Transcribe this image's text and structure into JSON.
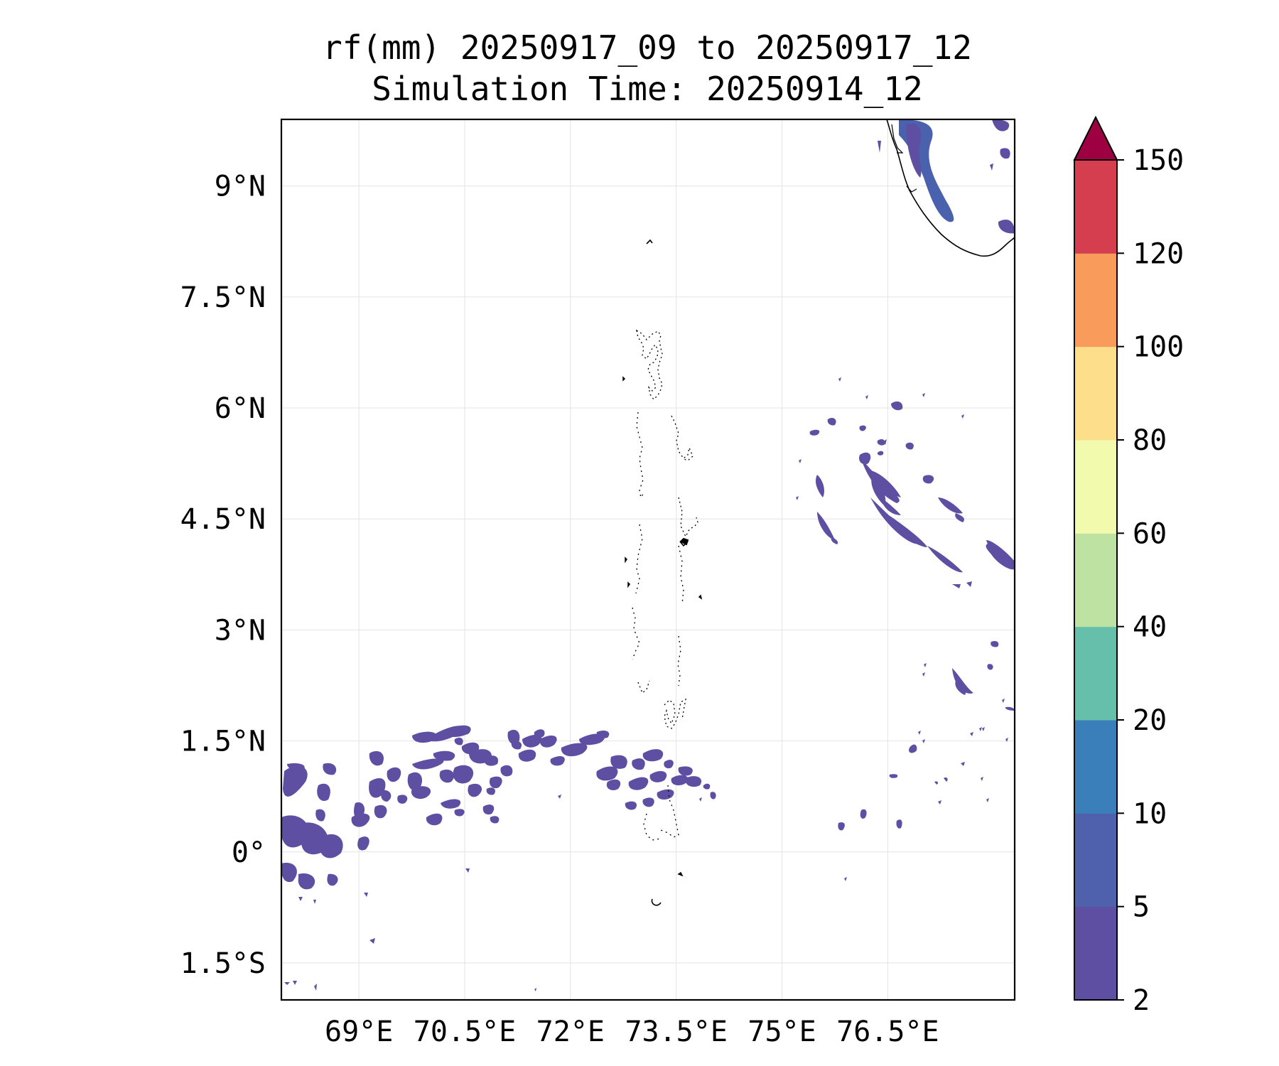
{
  "title": {
    "line1": "rf(mm) 20250917_09 to 20250917_12",
    "line2": "Simulation Time: 20250914_12"
  },
  "map": {
    "lon_range": [
      67.9,
      78.3
    ],
    "lat_range": [
      -2.0,
      9.9
    ],
    "lon_ticks": [
      {
        "value": 69.0,
        "label": "69°E"
      },
      {
        "value": 70.5,
        "label": "70.5°E"
      },
      {
        "value": 72.0,
        "label": "72°E"
      },
      {
        "value": 73.5,
        "label": "73.5°E"
      },
      {
        "value": 75.0,
        "label": "75°E"
      },
      {
        "value": 76.5,
        "label": "76.5°E"
      }
    ],
    "lat_ticks": [
      {
        "value": 9.0,
        "label": "9°N"
      },
      {
        "value": 7.5,
        "label": "7.5°N"
      },
      {
        "value": 6.0,
        "label": "6°N"
      },
      {
        "value": 4.5,
        "label": "4.5°N"
      },
      {
        "value": 3.0,
        "label": "3°N"
      },
      {
        "value": 1.5,
        "label": "1.5°N"
      },
      {
        "value": 0.0,
        "label": "0°"
      },
      {
        "value": -1.5,
        "label": "1.5°S"
      }
    ],
    "grid": true,
    "coastline_color": "#000000",
    "rain_color_low": "#5e4fa2",
    "rain_color_mid": "#4a62ad"
  },
  "colorbar": {
    "ticks": [
      "2",
      "5",
      "10",
      "20",
      "40",
      "60",
      "80",
      "100",
      "120",
      "150"
    ],
    "colors": [
      "#5e4fa2",
      "#4f61ac",
      "#3a7fba",
      "#66bfab",
      "#bde2a2",
      "#f2faae",
      "#fddf8b",
      "#f99b5a",
      "#d43e4f"
    ],
    "extend_color": "#9e0142",
    "extend": "max"
  }
}
